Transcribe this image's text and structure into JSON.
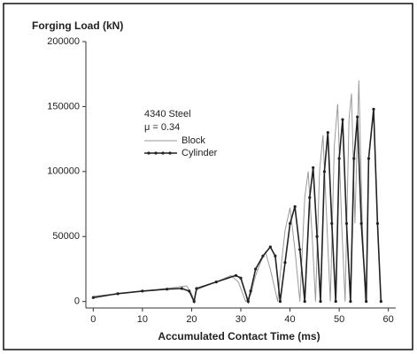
{
  "chart_data": {
    "type": "line",
    "y_label": "Forging Load (kN)",
    "x_label": "Accumulated Contact Time (ms)",
    "annotations": [
      "4340 Steel",
      "μ = 0.34"
    ],
    "xlim": [
      -1.5,
      61.5
    ],
    "xticks": [
      0,
      10,
      20,
      30,
      40,
      50,
      60
    ],
    "ylim": [
      -5000,
      200000
    ],
    "yticks": [
      0,
      50000,
      100000,
      150000,
      200000
    ],
    "series": [
      {
        "name": "Block",
        "color": "#9a9a9a",
        "x": [
          0,
          5,
          10,
          15,
          18,
          19,
          20,
          20.5,
          21,
          25,
          28,
          29.5,
          31,
          32,
          33,
          34,
          35,
          36,
          37.5,
          38,
          39,
          40,
          41,
          42,
          43,
          43.7,
          44.5,
          45.2,
          46,
          46.7,
          47.5,
          48.2,
          49,
          49.7,
          50.5,
          51.2,
          52,
          52.5,
          53.2,
          54,
          54.7,
          55.3
        ],
        "values": [
          4000,
          6000,
          8000,
          10000,
          11500,
          12000,
          6000,
          0,
          9000,
          15000,
          20000,
          15000,
          0,
          5000,
          20000,
          30000,
          38000,
          25000,
          0,
          20000,
          55000,
          72000,
          40000,
          0,
          80000,
          100000,
          50000,
          0,
          100000,
          128000,
          60000,
          0,
          120000,
          152000,
          60000,
          0,
          140000,
          160000,
          60000,
          170000,
          60000,
          0
        ]
      },
      {
        "name": "Cylinder",
        "color": "#222222",
        "x": [
          0,
          5,
          10,
          15,
          18,
          19.5,
          20.5,
          21,
          25,
          29,
          30,
          31.5,
          32,
          33,
          34.5,
          36,
          37,
          38,
          39,
          40,
          41,
          42,
          43,
          44,
          44.7,
          45.5,
          46.2,
          47,
          47.7,
          48.5,
          49.3,
          50,
          50.7,
          51.5,
          52.3,
          53,
          53.7,
          54.5,
          55.5,
          56,
          57,
          57.8,
          58.5
        ],
        "values": [
          3000,
          6000,
          8000,
          9500,
          10000,
          8000,
          0,
          10000,
          15000,
          20000,
          18000,
          0,
          8000,
          25000,
          35000,
          42000,
          35000,
          0,
          30000,
          60000,
          73000,
          40000,
          0,
          80000,
          103000,
          50000,
          0,
          100000,
          130000,
          60000,
          0,
          110000,
          140000,
          60000,
          0,
          110000,
          142000,
          60000,
          0,
          110000,
          148000,
          60000,
          0
        ]
      }
    ]
  }
}
